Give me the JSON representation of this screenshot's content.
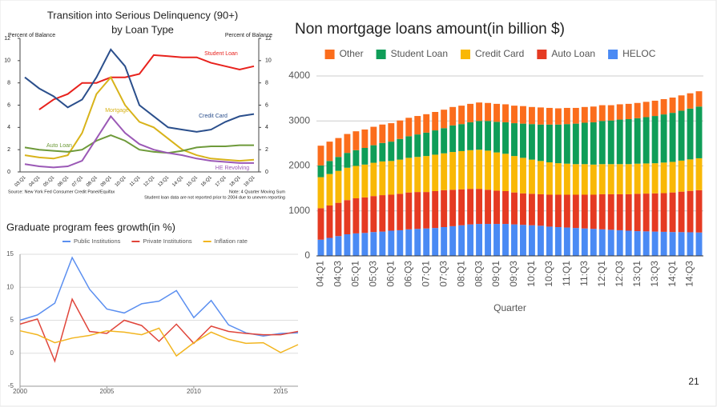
{
  "slide_number": "21",
  "chart_data": [
    {
      "type": "line",
      "title": [
        "Transition into Serious Delinquency (90+)",
        "by Loan Type"
      ],
      "ylabel": "Percent of Balance",
      "y2label": "Percent of Balance",
      "source": "Source: New York Fed Consumer Credit Panel/Equifax",
      "notes": [
        "Note: 4 Quarter Moving Sum",
        "Student loan data are not reported prior to 2004 due to uneven reporting"
      ],
      "categories": [
        "03:Q1",
        "04:Q1",
        "05:Q1",
        "06:Q1",
        "07:Q1",
        "08:Q1",
        "09:Q1",
        "10:Q1",
        "11:Q1",
        "12:Q1",
        "13:Q1",
        "14:Q1",
        "15:Q1",
        "16:Q1",
        "17:Q1",
        "18:Q1",
        "19:Q1"
      ],
      "ylim": [
        0,
        12
      ],
      "yticks": [
        0,
        2,
        4,
        6,
        8,
        10,
        12
      ],
      "y2lim": [
        0,
        12
      ],
      "y2ticks": [
        0,
        2,
        4,
        6,
        8,
        10,
        12
      ],
      "series": [
        {
          "name": "Student Loan",
          "color": "#e8221d",
          "values": [
            null,
            5.6,
            6.5,
            7,
            8,
            8,
            8.5,
            8.5,
            8.8,
            10.5,
            10.4,
            10.3,
            10.3,
            9.8,
            9.5,
            9.2,
            9.5
          ]
        },
        {
          "name": "Credit Card",
          "color": "#2b4f8c",
          "values": [
            8.5,
            7.5,
            6.8,
            5.8,
            6.5,
            8.5,
            11,
            9.5,
            6,
            5,
            4,
            3.8,
            3.6,
            3.8,
            4.5,
            5,
            5.2
          ]
        },
        {
          "name": "Mortgage",
          "color": "#d8b31a",
          "values": [
            1.5,
            1.3,
            1.2,
            1.5,
            3.5,
            7,
            8.5,
            6,
            4.5,
            4,
            3,
            2,
            1.5,
            1.2,
            1.1,
            1,
            1.1
          ]
        },
        {
          "name": "Auto Loan",
          "color": "#6e9a3a",
          "values": [
            2.2,
            2,
            1.9,
            1.8,
            2,
            2.8,
            3.3,
            2.8,
            2,
            1.8,
            1.7,
            1.9,
            2.2,
            2.3,
            2.3,
            2.4,
            2.4
          ]
        },
        {
          "name": "HE Revolving",
          "color": "#9b59b6",
          "values": [
            0.7,
            0.5,
            0.4,
            0.5,
            1,
            3,
            5,
            3.5,
            2.5,
            2,
            1.7,
            1.5,
            1.2,
            1,
            0.9,
            0.8,
            0.8
          ]
        }
      ]
    },
    {
      "type": "line",
      "title": "Graduate program fees growth(in %)",
      "x": [
        2000,
        2001,
        2002,
        2003,
        2004,
        2005,
        2006,
        2007,
        2008,
        2009,
        2010,
        2011,
        2012,
        2013,
        2014,
        2015,
        2016
      ],
      "xlim": [
        2000,
        2016
      ],
      "xticks": [
        2000,
        2005,
        2010,
        2015
      ],
      "ylim": [
        -5,
        15
      ],
      "yticks": [
        -5,
        0,
        5,
        10,
        15
      ],
      "grid": true,
      "series": [
        {
          "name": "Public Institutions",
          "color": "#5b8ff0",
          "values": [
            5,
            5.8,
            7.6,
            14.5,
            9.7,
            6.7,
            6.1,
            7.5,
            7.9,
            9.5,
            5.4,
            8,
            4.3,
            3.1,
            2.6,
            3,
            3.1
          ]
        },
        {
          "name": "Private Institutions",
          "color": "#e0453a",
          "values": [
            4.4,
            5.2,
            -1.2,
            8.2,
            3.3,
            3,
            5,
            4.2,
            1.8,
            4.4,
            1.5,
            4.1,
            3.3,
            3,
            2.8,
            2.8,
            3.3
          ]
        },
        {
          "name": "Inflation rate",
          "color": "#f2b51f",
          "values": [
            3.4,
            2.8,
            1.6,
            2.3,
            2.7,
            3.4,
            3.2,
            2.8,
            3.8,
            -0.4,
            1.6,
            3.2,
            2.1,
            1.5,
            1.6,
            0.1,
            1.3
          ]
        }
      ]
    },
    {
      "type": "bar",
      "stacked": true,
      "title": "Non mortgage loans amount(in billion $)",
      "xlabel": "Quarter",
      "categories": [
        "04:Q1",
        null,
        "04:Q3",
        null,
        "05:Q1",
        null,
        "05:Q3",
        null,
        "06:Q1",
        null,
        "06:Q3",
        null,
        "07:Q1",
        null,
        "07:Q3",
        null,
        "08:Q1",
        null,
        "08:Q3",
        null,
        "09:Q1",
        null,
        "09:Q3",
        null,
        "10:Q1",
        null,
        "10:Q3",
        null,
        "11:Q1",
        null,
        "11:Q3",
        null,
        "12:Q1",
        null,
        "12:Q3",
        null,
        "13:Q1",
        null,
        "13:Q3",
        null,
        "14:Q1",
        null,
        "14:Q3",
        null
      ],
      "ylim": [
        0,
        4000
      ],
      "yticks": [
        0,
        1000,
        2000,
        3000,
        4000
      ],
      "grid": true,
      "series": [
        {
          "name": "Other",
          "color": "#fb6d1c",
          "values": [
            440,
            430,
            420,
            420,
            420,
            410,
            410,
            410,
            410,
            410,
            410,
            410,
            410,
            410,
            410,
            410,
            410,
            410,
            410,
            400,
            400,
            400,
            390,
            390,
            380,
            380,
            370,
            360,
            360,
            350,
            350,
            350,
            350,
            340,
            340,
            340,
            340,
            340,
            340,
            340,
            340,
            340,
            340,
            340
          ]
        },
        {
          "name": "Student Loan",
          "color": "#0f9d58",
          "values": [
            260,
            290,
            310,
            330,
            350,
            370,
            390,
            410,
            430,
            460,
            480,
            500,
            520,
            540,
            560,
            590,
            600,
            620,
            640,
            660,
            680,
            700,
            730,
            760,
            790,
            810,
            840,
            860,
            880,
            900,
            920,
            940,
            960,
            970,
            990,
            1000,
            1010,
            1030,
            1050,
            1070,
            1090,
            1110,
            1130,
            1150
          ]
        },
        {
          "name": "Credit Card",
          "color": "#f9b806",
          "values": [
            690,
            700,
            710,
            720,
            720,
            730,
            740,
            750,
            750,
            760,
            770,
            780,
            800,
            810,
            820,
            840,
            850,
            860,
            870,
            870,
            850,
            830,
            810,
            790,
            760,
            740,
            720,
            700,
            690,
            680,
            680,
            670,
            670,
            670,
            670,
            670,
            670,
            670,
            670,
            680,
            680,
            690,
            700,
            710
          ]
        },
        {
          "name": "Auto Loan",
          "color": "#e53a22",
          "values": [
            700,
            720,
            740,
            760,
            780,
            790,
            800,
            810,
            800,
            810,
            820,
            820,
            810,
            820,
            820,
            810,
            800,
            790,
            780,
            760,
            740,
            730,
            710,
            700,
            700,
            700,
            710,
            720,
            730,
            740,
            750,
            760,
            780,
            790,
            800,
            810,
            830,
            840,
            850,
            860,
            880,
            900,
            920,
            940
          ]
        },
        {
          "name": "HELOC",
          "color": "#4a8af4",
          "values": [
            360,
            400,
            440,
            480,
            500,
            510,
            530,
            540,
            560,
            570,
            590,
            600,
            610,
            620,
            640,
            660,
            680,
            700,
            710,
            710,
            710,
            710,
            700,
            690,
            680,
            670,
            650,
            640,
            630,
            620,
            610,
            600,
            590,
            580,
            570,
            560,
            550,
            545,
            540,
            535,
            530,
            528,
            525,
            520
          ]
        }
      ]
    }
  ]
}
